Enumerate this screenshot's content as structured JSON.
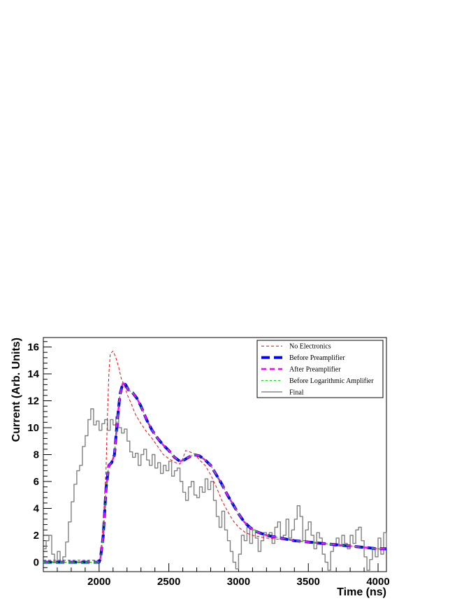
{
  "chart_data": {
    "type": "line",
    "title": "",
    "xlabel": "Time (ns)",
    "ylabel": "Current (Arb. Units)",
    "xlim": [
      1600,
      4060
    ],
    "ylim": [
      -0.7,
      16.7
    ],
    "x_ticks": [
      2000,
      2500,
      3000,
      3500,
      4000
    ],
    "y_ticks": [
      0,
      2,
      4,
      6,
      8,
      10,
      12,
      14,
      16
    ],
    "grid": false,
    "legend_position": "top-right",
    "series": [
      {
        "name": "No Electronics",
        "color": "#ff0000",
        "style": "dashed-thin",
        "points": [
          [
            1600,
            0.15
          ],
          [
            2000,
            0.15
          ],
          [
            2010,
            0.5
          ],
          [
            2030,
            3.0
          ],
          [
            2050,
            7.0
          ],
          [
            2060,
            11.0
          ],
          [
            2070,
            14.0
          ],
          [
            2080,
            15.5
          ],
          [
            2100,
            15.7
          ],
          [
            2120,
            15.2
          ],
          [
            2140,
            14.5
          ],
          [
            2160,
            13.6
          ],
          [
            2180,
            13.2
          ],
          [
            2200,
            12.5
          ],
          [
            2230,
            11.8
          ],
          [
            2260,
            11.0
          ],
          [
            2300,
            10.3
          ],
          [
            2340,
            9.7
          ],
          [
            2380,
            9.2
          ],
          [
            2420,
            8.6
          ],
          [
            2460,
            8.0
          ],
          [
            2500,
            7.7
          ],
          [
            2550,
            7.4
          ],
          [
            2580,
            7.3
          ],
          [
            2600,
            7.7
          ],
          [
            2620,
            8.3
          ],
          [
            2650,
            8.2
          ],
          [
            2690,
            8.0
          ],
          [
            2720,
            7.6
          ],
          [
            2760,
            7.2
          ],
          [
            2800,
            6.5
          ],
          [
            2840,
            5.6
          ],
          [
            2880,
            4.6
          ],
          [
            2920,
            3.8
          ],
          [
            2960,
            3.1
          ],
          [
            3000,
            2.6
          ],
          [
            3050,
            2.2
          ],
          [
            3100,
            2.0
          ],
          [
            3200,
            1.8
          ],
          [
            3300,
            1.7
          ],
          [
            3400,
            1.6
          ],
          [
            3500,
            1.5
          ],
          [
            3600,
            1.4
          ],
          [
            3700,
            1.3
          ],
          [
            3800,
            1.2
          ],
          [
            3900,
            1.1
          ],
          [
            4000,
            1.0
          ],
          [
            4060,
            0.9
          ]
        ]
      },
      {
        "name": "Before Preamplifier",
        "color": "#0000ff",
        "style": "dash-thick",
        "points": [
          [
            1600,
            0.0
          ],
          [
            2000,
            0.0
          ],
          [
            2010,
            0.3
          ],
          [
            2030,
            2.0
          ],
          [
            2050,
            5.5
          ],
          [
            2070,
            7.2
          ],
          [
            2090,
            7.4
          ],
          [
            2110,
            8.0
          ],
          [
            2130,
            10.5
          ],
          [
            2150,
            12.5
          ],
          [
            2170,
            13.3
          ],
          [
            2190,
            13.2
          ],
          [
            2210,
            12.8
          ],
          [
            2240,
            12.6
          ],
          [
            2270,
            12.2
          ],
          [
            2300,
            11.6
          ],
          [
            2340,
            10.6
          ],
          [
            2380,
            9.8
          ],
          [
            2420,
            9.2
          ],
          [
            2460,
            8.7
          ],
          [
            2500,
            8.3
          ],
          [
            2540,
            7.8
          ],
          [
            2580,
            7.5
          ],
          [
            2610,
            7.6
          ],
          [
            2640,
            7.8
          ],
          [
            2680,
            8.0
          ],
          [
            2720,
            7.9
          ],
          [
            2760,
            7.6
          ],
          [
            2800,
            7.2
          ],
          [
            2840,
            6.5
          ],
          [
            2880,
            5.8
          ],
          [
            2920,
            5.0
          ],
          [
            2960,
            4.3
          ],
          [
            3000,
            3.6
          ],
          [
            3040,
            3.0
          ],
          [
            3080,
            2.6
          ],
          [
            3120,
            2.3
          ],
          [
            3200,
            2.0
          ],
          [
            3300,
            1.8
          ],
          [
            3400,
            1.6
          ],
          [
            3500,
            1.5
          ],
          [
            3600,
            1.4
          ],
          [
            3700,
            1.3
          ],
          [
            3800,
            1.2
          ],
          [
            3900,
            1.1
          ],
          [
            4000,
            1.0
          ],
          [
            4060,
            1.0
          ]
        ]
      },
      {
        "name": "After Preamplifier",
        "color": "#ff00ff",
        "style": "dashed",
        "points": [
          [
            1600,
            0.0
          ],
          [
            2000,
            0.0
          ],
          [
            2010,
            0.3
          ],
          [
            2030,
            2.0
          ],
          [
            2050,
            5.5
          ],
          [
            2070,
            7.2
          ],
          [
            2090,
            7.4
          ],
          [
            2110,
            8.0
          ],
          [
            2130,
            10.5
          ],
          [
            2150,
            12.5
          ],
          [
            2170,
            13.3
          ],
          [
            2190,
            13.2
          ],
          [
            2210,
            12.8
          ],
          [
            2240,
            12.6
          ],
          [
            2270,
            12.2
          ],
          [
            2300,
            11.6
          ],
          [
            2340,
            10.6
          ],
          [
            2380,
            9.8
          ],
          [
            2420,
            9.2
          ],
          [
            2460,
            8.7
          ],
          [
            2500,
            8.3
          ],
          [
            2540,
            7.8
          ],
          [
            2580,
            7.5
          ],
          [
            2610,
            7.6
          ],
          [
            2640,
            7.8
          ],
          [
            2680,
            8.0
          ],
          [
            2720,
            7.9
          ],
          [
            2760,
            7.6
          ],
          [
            2800,
            7.2
          ],
          [
            2840,
            6.5
          ],
          [
            2880,
            5.8
          ],
          [
            2920,
            5.0
          ],
          [
            2960,
            4.3
          ],
          [
            3000,
            3.6
          ],
          [
            3040,
            3.0
          ],
          [
            3080,
            2.6
          ],
          [
            3120,
            2.3
          ],
          [
            3200,
            2.0
          ],
          [
            3300,
            1.8
          ],
          [
            3400,
            1.6
          ],
          [
            3500,
            1.5
          ],
          [
            3600,
            1.4
          ],
          [
            3700,
            1.3
          ],
          [
            3800,
            1.2
          ],
          [
            3900,
            1.1
          ],
          [
            4000,
            1.0
          ],
          [
            4060,
            1.0
          ]
        ]
      },
      {
        "name": "Before Logarithmic Amplifier",
        "color": "#00cc00",
        "style": "dashed-fine",
        "points": [
          [
            1600,
            0.0
          ],
          [
            2000,
            0.0
          ],
          [
            2010,
            0.3
          ],
          [
            2030,
            2.0
          ],
          [
            2050,
            5.5
          ],
          [
            2070,
            7.2
          ],
          [
            2090,
            7.4
          ],
          [
            2110,
            8.0
          ],
          [
            2130,
            10.5
          ],
          [
            2150,
            12.5
          ],
          [
            2170,
            13.3
          ],
          [
            2190,
            13.2
          ],
          [
            2210,
            12.8
          ],
          [
            2240,
            12.6
          ],
          [
            2270,
            12.2
          ],
          [
            2300,
            11.6
          ],
          [
            2340,
            10.6
          ],
          [
            2380,
            9.8
          ],
          [
            2420,
            9.2
          ],
          [
            2460,
            8.7
          ],
          [
            2500,
            8.3
          ],
          [
            2540,
            7.8
          ],
          [
            2580,
            7.5
          ],
          [
            2610,
            7.6
          ],
          [
            2640,
            7.8
          ],
          [
            2680,
            8.0
          ],
          [
            2720,
            7.9
          ],
          [
            2760,
            7.6
          ],
          [
            2800,
            7.2
          ],
          [
            2840,
            6.5
          ],
          [
            2880,
            5.8
          ],
          [
            2920,
            5.0
          ],
          [
            2960,
            4.3
          ],
          [
            3000,
            3.6
          ],
          [
            3040,
            3.0
          ],
          [
            3080,
            2.6
          ],
          [
            3120,
            2.3
          ],
          [
            3200,
            2.0
          ],
          [
            3300,
            1.8
          ],
          [
            3400,
            1.6
          ],
          [
            3500,
            1.5
          ],
          [
            3600,
            1.4
          ],
          [
            3700,
            1.3
          ],
          [
            3800,
            1.2
          ],
          [
            3900,
            1.1
          ],
          [
            4000,
            1.0
          ],
          [
            4060,
            1.0
          ]
        ]
      },
      {
        "name": "Final",
        "color": "#808080",
        "style": "step",
        "points": [
          [
            1600,
            1.0
          ],
          [
            1620,
            1.6
          ],
          [
            1640,
            2.0
          ],
          [
            1660,
            0.6
          ],
          [
            1680,
            0.0
          ],
          [
            1700,
            0.8
          ],
          [
            1720,
            0.0
          ],
          [
            1740,
            0.4
          ],
          [
            1760,
            1.5
          ],
          [
            1780,
            3.0
          ],
          [
            1800,
            4.5
          ],
          [
            1820,
            5.8
          ],
          [
            1840,
            6.8
          ],
          [
            1860,
            7.2
          ],
          [
            1880,
            8.6
          ],
          [
            1900,
            9.4
          ],
          [
            1920,
            10.6
          ],
          [
            1940,
            11.4
          ],
          [
            1960,
            10.2
          ],
          [
            1980,
            10.5
          ],
          [
            2000,
            9.8
          ],
          [
            2020,
            10.3
          ],
          [
            2040,
            10.6
          ],
          [
            2060,
            9.8
          ],
          [
            2080,
            10.6
          ],
          [
            2100,
            10.2
          ],
          [
            2120,
            10.8
          ],
          [
            2140,
            10.0
          ],
          [
            2160,
            9.6
          ],
          [
            2180,
            9.9
          ],
          [
            2200,
            9.0
          ],
          [
            2220,
            8.2
          ],
          [
            2240,
            7.8
          ],
          [
            2260,
            8.1
          ],
          [
            2280,
            7.2
          ],
          [
            2300,
            8.0
          ],
          [
            2320,
            8.4
          ],
          [
            2340,
            7.6
          ],
          [
            2360,
            7.2
          ],
          [
            2380,
            8.0
          ],
          [
            2400,
            7.0
          ],
          [
            2420,
            7.4
          ],
          [
            2440,
            6.6
          ],
          [
            2460,
            7.2
          ],
          [
            2480,
            6.8
          ],
          [
            2500,
            7.5
          ],
          [
            2520,
            6.4
          ],
          [
            2540,
            6.8
          ],
          [
            2560,
            7.0
          ],
          [
            2580,
            6.0
          ],
          [
            2600,
            5.2
          ],
          [
            2620,
            4.6
          ],
          [
            2640,
            5.6
          ],
          [
            2660,
            6.0
          ],
          [
            2680,
            5.0
          ],
          [
            2700,
            4.8
          ],
          [
            2720,
            5.6
          ],
          [
            2740,
            5.2
          ],
          [
            2760,
            6.2
          ],
          [
            2780,
            5.4
          ],
          [
            2800,
            6.0
          ],
          [
            2820,
            4.6
          ],
          [
            2840,
            3.4
          ],
          [
            2860,
            2.6
          ],
          [
            2880,
            3.8
          ],
          [
            2900,
            2.4
          ],
          [
            2920,
            1.6
          ],
          [
            2940,
            0.8
          ],
          [
            2960,
            0.0
          ],
          [
            2980,
            -0.5
          ],
          [
            3000,
            0.6
          ],
          [
            3020,
            2.0
          ],
          [
            3040,
            1.6
          ],
          [
            3060,
            2.6
          ],
          [
            3080,
            1.4
          ],
          [
            3100,
            2.4
          ],
          [
            3120,
            1.8
          ],
          [
            3140,
            0.8
          ],
          [
            3160,
            1.6
          ],
          [
            3180,
            2.2
          ],
          [
            3200,
            2.0
          ],
          [
            3220,
            2.2
          ],
          [
            3240,
            1.4
          ],
          [
            3260,
            2.6
          ],
          [
            3280,
            3.0
          ],
          [
            3300,
            1.8
          ],
          [
            3320,
            2.0
          ],
          [
            3340,
            3.2
          ],
          [
            3360,
            1.8
          ],
          [
            3380,
            2.4
          ],
          [
            3400,
            3.2
          ],
          [
            3420,
            4.2
          ],
          [
            3440,
            3.4
          ],
          [
            3460,
            1.6
          ],
          [
            3480,
            2.4
          ],
          [
            3500,
            3.0
          ],
          [
            3520,
            2.0
          ],
          [
            3540,
            1.0
          ],
          [
            3560,
            2.2
          ],
          [
            3580,
            1.8
          ],
          [
            3600,
            0.6
          ],
          [
            3620,
            0.0
          ],
          [
            3640,
            -0.6
          ],
          [
            3660,
            0.8
          ],
          [
            3680,
            1.2
          ],
          [
            3700,
            1.8
          ],
          [
            3720,
            1.2
          ],
          [
            3740,
            2.0
          ],
          [
            3760,
            1.4
          ],
          [
            3780,
            1.0
          ],
          [
            3800,
            2.0
          ],
          [
            3820,
            1.4
          ],
          [
            3840,
            2.4
          ],
          [
            3860,
            2.6
          ],
          [
            3880,
            1.6
          ],
          [
            3900,
            0.4
          ],
          [
            3920,
            -0.6
          ],
          [
            3940,
            0.2
          ],
          [
            3960,
            1.0
          ],
          [
            3980,
            0.4
          ],
          [
            4000,
            1.8
          ],
          [
            4020,
            0.6
          ],
          [
            4040,
            2.2
          ],
          [
            4060,
            1.0
          ]
        ]
      }
    ]
  }
}
